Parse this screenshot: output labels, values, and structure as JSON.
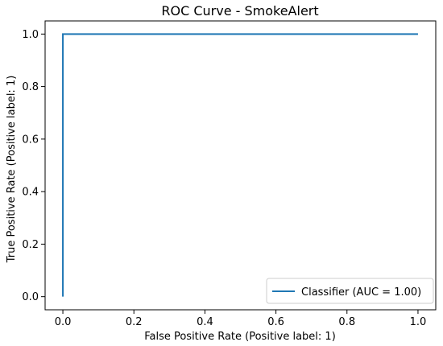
{
  "chart_data": {
    "type": "line",
    "title": "ROC Curve - SmokeAlert",
    "xlabel": "False Positive Rate (Positive label: 1)",
    "ylabel": "True Positive Rate (Positive label: 1)",
    "xlim": [
      -0.05,
      1.05
    ],
    "ylim": [
      -0.05,
      1.05
    ],
    "x_ticks": [
      0.0,
      0.2,
      0.4,
      0.6,
      0.8,
      1.0
    ],
    "x_tick_labels": [
      "0.0",
      "0.2",
      "0.4",
      "0.6",
      "0.8",
      "1.0"
    ],
    "y_ticks": [
      0.0,
      0.2,
      0.4,
      0.6,
      0.8,
      1.0
    ],
    "y_tick_labels": [
      "0.0",
      "0.2",
      "0.4",
      "0.6",
      "0.8",
      "1.0"
    ],
    "grid": false,
    "legend_position": "lower-right",
    "series": [
      {
        "name": "Classifier (AUC = 1.00)",
        "color": "#1f77b4",
        "x": [
          0.0,
          0.0,
          1.0
        ],
        "y": [
          0.0,
          1.0,
          1.0
        ]
      }
    ]
  }
}
